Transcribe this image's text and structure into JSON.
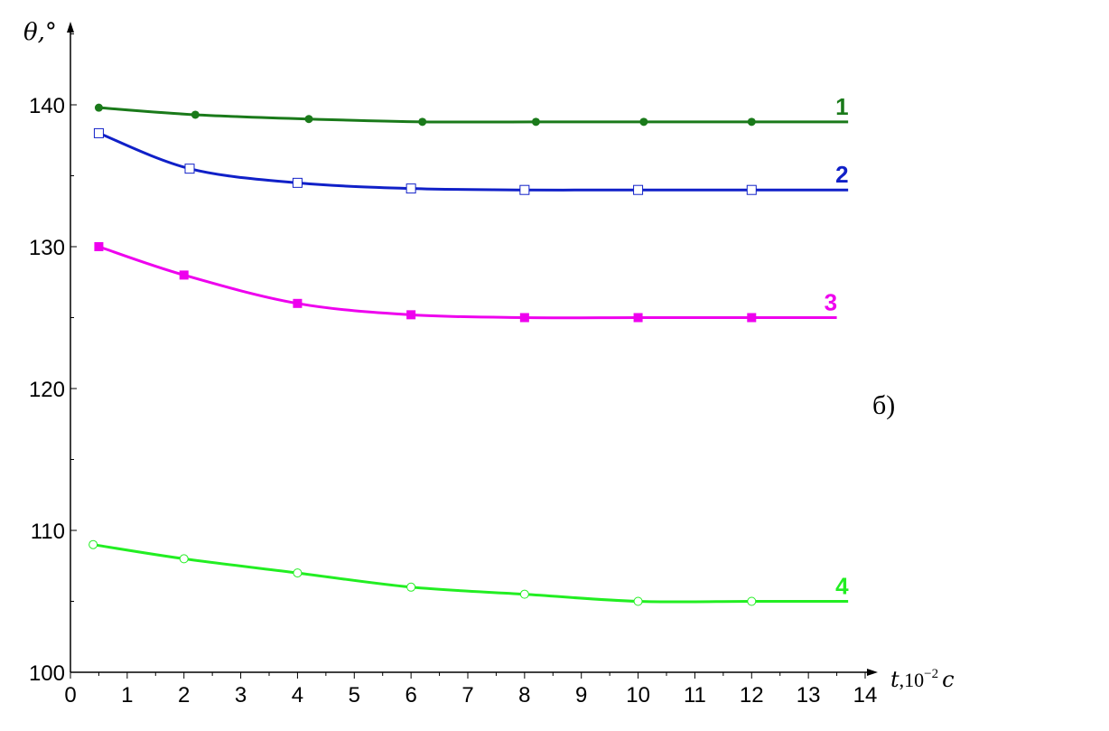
{
  "chart_data": {
    "type": "line",
    "panel_label": "б)",
    "ylabel": "θ,°",
    "xlabel": "t,10",
    "xlabel_exp": "−2",
    "xlabel_unit": "c",
    "xlim": [
      0,
      14
    ],
    "ylim": [
      100,
      145
    ],
    "x_ticks": [
      0,
      1,
      2,
      3,
      4,
      5,
      6,
      7,
      8,
      9,
      10,
      11,
      12,
      13,
      14
    ],
    "y_ticks": [
      100,
      110,
      120,
      130,
      140
    ],
    "grid": false,
    "series": [
      {
        "name": "1",
        "color": "#1a7a1a",
        "marker": "filled-circle",
        "x": [
          0.5,
          2.2,
          4.2,
          6.2,
          8.2,
          10.1,
          12.0,
          13.7
        ],
        "y": [
          139.8,
          139.3,
          139.0,
          138.8,
          138.8,
          138.8,
          138.8,
          138.8
        ],
        "marker_count": 7
      },
      {
        "name": "2",
        "color": "#1020c8",
        "marker": "open-square",
        "x": [
          0.5,
          2.1,
          4.0,
          6.0,
          8.0,
          10.0,
          12.0,
          13.7
        ],
        "y": [
          138.0,
          135.5,
          134.5,
          134.1,
          134.0,
          134.0,
          134.0,
          134.0
        ],
        "marker_count": 7
      },
      {
        "name": "3",
        "color": "#ee00ee",
        "marker": "filled-square",
        "x": [
          0.5,
          2.0,
          4.0,
          6.0,
          8.0,
          10.0,
          12.0,
          13.5
        ],
        "y": [
          130.0,
          128.0,
          126.0,
          125.2,
          125.0,
          125.0,
          125.0,
          125.0
        ],
        "marker_count": 7
      },
      {
        "name": "4",
        "color": "#22ee22",
        "marker": "open-circle",
        "x": [
          0.4,
          2.0,
          4.0,
          6.0,
          8.0,
          10.0,
          12.0,
          13.7
        ],
        "y": [
          109.0,
          108.0,
          107.0,
          106.0,
          105.5,
          105.0,
          105.0,
          105.0
        ],
        "marker_count": 7
      }
    ]
  }
}
